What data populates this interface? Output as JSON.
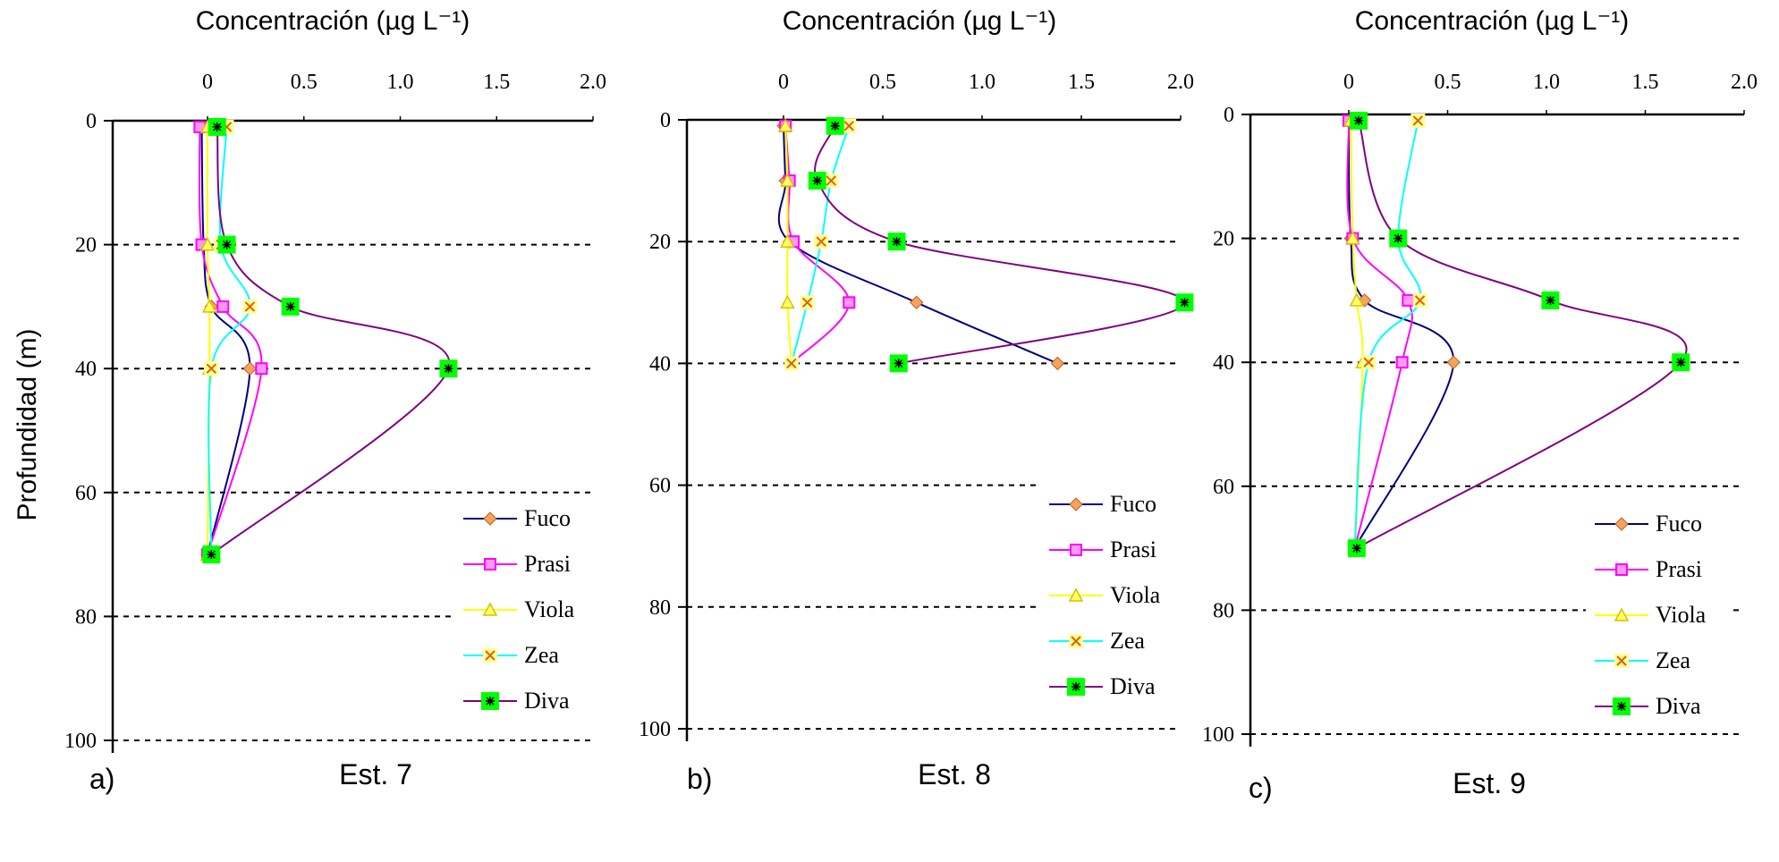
{
  "figure": {
    "ylabel": "Profundidad (m)",
    "colors": {
      "Fuco": "#000080",
      "Prasi": "#ff00ff",
      "Viola": "#ffff00",
      "Zea": "#00ffff",
      "Diva": "#800080",
      "Fuco_marker": "#f4a460",
      "Prasi_marker": "#ff99ee",
      "Viola_marker": "#ffff66",
      "Zea_marker": "#ffff99",
      "Zea_cross": "#e06000",
      "Diva_marker": "#00ff00"
    }
  },
  "chart_data": [
    {
      "type": "line",
      "panel": "a)",
      "station": "Est. 7",
      "title": "Concentración (µg L⁻¹)",
      "xlabel": "Concentración (µg L⁻¹)",
      "ylabel": "Profundidad (m)",
      "xlim": [
        -0.5,
        2.0
      ],
      "ylim": [
        0,
        100
      ],
      "xticks": [
        "0",
        "0.5",
        "1.0",
        "1.5",
        "2.0"
      ],
      "yticks": [
        "0",
        "20",
        "40",
        "60",
        "80",
        "100"
      ],
      "gridlines_y": [
        20,
        40,
        60,
        80,
        100
      ],
      "legend_position": "lower-right",
      "legend": [
        "Fuco",
        "Prasi",
        "Viola",
        "Zea",
        "Diva"
      ],
      "series": [
        {
          "name": "Fuco",
          "depth": [
            1,
            20,
            30,
            40,
            70
          ],
          "values": [
            -0.03,
            -0.02,
            0.02,
            0.22,
            0.0
          ]
        },
        {
          "name": "Prasi",
          "depth": [
            1,
            20,
            30,
            40,
            70
          ],
          "values": [
            -0.04,
            -0.03,
            0.08,
            0.28,
            0.0
          ]
        },
        {
          "name": "Viola",
          "depth": [
            1,
            20,
            30,
            40,
            70
          ],
          "values": [
            0.0,
            0.0,
            0.01,
            0.01,
            0.0
          ]
        },
        {
          "name": "Zea",
          "depth": [
            1,
            20,
            30,
            40,
            70
          ],
          "values": [
            0.1,
            0.07,
            0.22,
            0.02,
            0.02
          ]
        },
        {
          "name": "Diva",
          "depth": [
            1,
            20,
            30,
            40,
            70
          ],
          "values": [
            0.05,
            0.1,
            0.43,
            1.25,
            0.02
          ]
        }
      ]
    },
    {
      "type": "line",
      "panel": "b)",
      "station": "Est. 8",
      "title": "Concentración (µg L⁻¹)",
      "xlabel": "Concentración (µg L⁻¹)",
      "ylabel": "Profundidad (m)",
      "xlim": [
        -0.5,
        2.0
      ],
      "ylim": [
        0,
        100
      ],
      "xticks": [
        "0",
        "0.5",
        "1.0",
        "1.5",
        "2.0"
      ],
      "yticks": [
        "0",
        "20",
        "40",
        "60",
        "80",
        "100"
      ],
      "gridlines_y": [
        20,
        40,
        60,
        80,
        100
      ],
      "legend_position": "lower-right",
      "legend": [
        "Fuco",
        "Prasi",
        "Viola",
        "Zea",
        "Diva"
      ],
      "series": [
        {
          "name": "Fuco",
          "depth": [
            1,
            10,
            20,
            30,
            40
          ],
          "values": [
            0.0,
            0.01,
            0.03,
            0.67,
            1.38
          ]
        },
        {
          "name": "Prasi",
          "depth": [
            1,
            10,
            20,
            30,
            40
          ],
          "values": [
            0.01,
            0.03,
            0.05,
            0.33,
            0.04
          ]
        },
        {
          "name": "Viola",
          "depth": [
            1,
            10,
            20,
            30,
            40
          ],
          "values": [
            0.01,
            0.02,
            0.02,
            0.02,
            0.04
          ]
        },
        {
          "name": "Zea",
          "depth": [
            1,
            10,
            20,
            30,
            40
          ],
          "values": [
            0.33,
            0.24,
            0.19,
            0.12,
            0.04
          ]
        },
        {
          "name": "Diva",
          "depth": [
            1,
            10,
            20,
            30,
            40
          ],
          "values": [
            0.26,
            0.17,
            0.57,
            2.02,
            0.58
          ]
        }
      ]
    },
    {
      "type": "line",
      "panel": "c)",
      "station": "Est. 9",
      "title": "Concentración (µg L⁻¹)",
      "xlabel": "Concentración (µg L⁻¹)",
      "ylabel": "Profundidad (m)",
      "xlim": [
        -0.5,
        2.0
      ],
      "ylim": [
        0,
        100
      ],
      "xticks": [
        "0",
        "0.5",
        "1.0",
        "1.5",
        "2.0"
      ],
      "yticks": [
        "0",
        "20",
        "40",
        "60",
        "80",
        "100"
      ],
      "gridlines_y": [
        20,
        40,
        60,
        80,
        100
      ],
      "legend_position": "lower-right",
      "legend": [
        "Fuco",
        "Prasi",
        "Viola",
        "Zea",
        "Diva"
      ],
      "series": [
        {
          "name": "Fuco",
          "depth": [
            1,
            20,
            30,
            40,
            70
          ],
          "values": [
            0.0,
            0.01,
            0.08,
            0.53,
            0.03
          ]
        },
        {
          "name": "Prasi",
          "depth": [
            1,
            20,
            30,
            40,
            70
          ],
          "values": [
            0.0,
            0.02,
            0.3,
            0.27,
            0.03
          ]
        },
        {
          "name": "Viola",
          "depth": [
            1,
            20,
            30,
            40,
            70
          ],
          "values": [
            0.01,
            0.02,
            0.04,
            0.07,
            0.03
          ]
        },
        {
          "name": "Zea",
          "depth": [
            1,
            20,
            30,
            40,
            70
          ],
          "values": [
            0.35,
            0.25,
            0.36,
            0.1,
            0.03
          ]
        },
        {
          "name": "Diva",
          "depth": [
            1,
            20,
            30,
            40,
            70
          ],
          "values": [
            0.05,
            0.25,
            1.02,
            1.68,
            0.04
          ]
        }
      ]
    }
  ]
}
